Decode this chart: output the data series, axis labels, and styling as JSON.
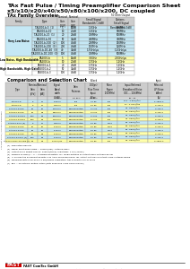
{
  "title_line1": "TAx Fast Pulse / Timing Preamplifier Comparison Sheet",
  "title_line2": "x5/x10/x20/x40/x50/x80/x100/x200, DC coupled",
  "section1_title": "TAx Family Overview",
  "section2_title": "Comparison and Selection Chart",
  "bg_color": "#ffffff",
  "header_color": "#cccccc",
  "row_color_blue": "#c5e8f5",
  "row_color_yellow": "#ffffaa",
  "row_color_white": "#ffffff",
  "row_color_gray": "#e8e8e8",
  "family_col_widths": [
    30,
    28,
    12,
    12,
    32,
    30
  ],
  "family_headers": [
    "Family",
    "Type",
    "Nominal\nGain\n[V/V]",
    "Nominal\nGain\n[dB]",
    "Small Signal\nBandwidth (-3dB)",
    "50 Ohm Output\nOptions:\nSmall Signal\nBandwidth (-3dB)"
  ],
  "family_groups": [
    {
      "name": "Very Low Noise",
      "color": "#c5e8f5",
      "rows": [
        [
          "TA1000-b-5  (1)",
          "5",
          "14dB",
          "1.3GHz",
          "900MHz"
        ],
        [
          "TA1000-b-10",
          "10",
          "20dB",
          "1.3GHz",
          "900MHz"
        ],
        [
          "TA1000-b-20  (1)",
          "20",
          "26dB",
          "700MHz",
          "500MHz"
        ],
        [
          "TA1000-b-50",
          "50",
          "34dB",
          "400MHz",
          "300MHz"
        ],
        [
          "TA1000-b-100  (2)",
          "100",
          "40dB",
          "200MHz",
          "150MHz"
        ],
        [
          "TA1000-b-200  (3)",
          "200",
          "46dB",
          "170MHz",
          "120MHz"
        ],
        [
          "TA1000-b-DC-40  (3)",
          "40",
          "32dB",
          "1.7GHz/μs",
          "1.1GHz/μs"
        ],
        [
          "TA1000-b-DC-100  (3)",
          "100",
          "40dB",
          "700MHz",
          "500MHz"
        ]
      ]
    },
    {
      "name": "Low Noise, High Bandwidth",
      "color": "#ffffaa",
      "rows": [
        [
          "TA2000-b",
          "5",
          "14dB",
          "3.5GHz",
          "2.5GHz/μs"
        ],
        [
          "TA2000-b",
          "10",
          "20dB",
          "1.7GHz",
          "1.2GHz"
        ]
      ]
    },
    {
      "name": "High Bandwidth, High Gain",
      "color": "#ffffff",
      "rows": [
        [
          "TA3000-b-1",
          "20",
          "26dB",
          "1.7GHz",
          "1.2GHz"
        ],
        [
          "TA3000-b-2",
          "50",
          "34dB",
          "1.7GHz",
          "1.2GHz"
        ],
        [
          "TA3000-b-3",
          "100",
          "40dB",
          "1.7GHz",
          "1.2GHz"
        ]
      ]
    }
  ],
  "comp_col_widths": [
    25,
    11,
    11,
    22,
    20,
    19,
    17,
    34,
    25
  ],
  "comp_headers": [
    "Type",
    "Nominal\nGain\n[V/V]",
    "Nominal\nGain\n[dB]",
    "Small\nSignal\nBand-\nwidth\n(-3dB)",
    "Gain\nFlatness",
    "Pulsed\n(100ps)\nRise Time\nInput\nPulse",
    "Noise\nFigure\n(100MHz)",
    "Input Referred\nBroadband Noise\n(DC ... 10.6MHz)",
    "Input\nReferred\nLP Noise\n(dBm)\n(5)"
  ],
  "comp_subheaders": [
    "",
    "",
    "",
    "40 ps s",
    "20 ps s",
    "50 ps s",
    "",
    "20...40",
    "(4)"
  ],
  "comp_rows": [
    {
      "color": "#c5e8f5",
      "data": [
        "TA1000-b",
        "5",
        "14",
        "1.3GHz",
        "Typ",
        "40 ps",
        "Typ",
        "1.17...1.5nV/√Hz",
        "2.75μV s"
      ]
    },
    {
      "color": "#ffffaa",
      "data": [
        "TA2000-b",
        "5",
        "14",
        "3.5GHz",
        "Typ",
        "60 ps",
        "Typ",
        "1.1...1.5nV/√Hz",
        "3.7μV s"
      ]
    },
    {
      "color": "#c5e8f5",
      "data": [
        "TA1000-b x20",
        "20",
        "26",
        "700MHz",
        "Compensated",
        "0.1 ns",
        "Typ",
        "41...56nV/√Hz",
        "3.7μV s"
      ]
    },
    {
      "color": "#ffffaa",
      "data": [
        "TA1000-b x50",
        "50",
        "34",
        "400MHz",
        "Compensated",
        "0.2 ns",
        "Typ",
        "41...56nV/√Hz",
        "3.7μV s"
      ]
    },
    {
      "color": "#c5e8f5",
      "data": [
        "TA1000-b x100",
        "100",
        "40",
        "200MHz",
        "Compensated",
        "0.4 ns",
        "Typ",
        "41...56nV/√Hz",
        "3.7μV s"
      ]
    },
    {
      "color": "#ffffaa",
      "data": [
        "TA1000-b x200",
        "200",
        "46",
        "170MHz",
        "Compensated",
        "0.7 ns",
        "Typ",
        "41...56nV/√Hz",
        "3.7μV s"
      ]
    },
    {
      "color": "#c5e8f5",
      "data": [
        "TA2000-b x5 (3)",
        "5",
        "14",
        "3.5GHz",
        "Compensated",
        "60 ps",
        "1100",
        "40...56nV/√Hz",
        "3.7μV s"
      ]
    },
    {
      "color": "#ffffaa",
      "data": [
        "TA2000-b x10",
        "10",
        "20",
        "1.7GHz",
        "Compensated",
        "80 ps",
        "1100",
        "40...56nV/√Hz",
        "3.7μV s"
      ]
    },
    {
      "color": "#c5e8f5",
      "data": [
        "TA3000-b x20",
        "20",
        "26",
        "1.7GHz",
        "Compensated",
        "80 ps",
        "1100",
        "40...56nV/√Hz",
        "3.7μV s"
      ]
    },
    {
      "color": "#ffffaa",
      "data": [
        "TA3000-b x50",
        "50",
        "34",
        "1.7GHz",
        "Compensated",
        "80 ps",
        "1100",
        "40...56nV/√Hz",
        "3.7μV s"
      ]
    },
    {
      "color": "#c5e8f5",
      "data": [
        "TA3000-b x100 (4)",
        "100",
        "40",
        "1.7GHz",
        "Compensated",
        "80 ps",
        "1100",
        "40...56nV/√Hz",
        "3.7μV s"
      ]
    },
    {
      "color": "#ffffaa",
      "data": [
        "TA1000-b-DC-40 new (4)",
        "40",
        "32",
        "1.7GHz/μs",
        "Compensated",
        "65 ps",
        "Typ",
        "41...56nV/√Hz",
        "3.75μV s"
      ]
    }
  ],
  "footnotes": [
    "(1)  Simulation Results",
    "(2)  Signal input drive range = 250mV(diff), \"internal Bias\"",
    "(3)  Output Pulse height approx. 3x6mV(typ.p), Input Bias: 1 ms (100ps)",
    "(4)  Defined as RMS(s = n = standard deviation, ref. range pictures of output noise voltages below",
    "(5)  In 10 minutes accumulated with 2 Hz ADFs sampling mean: ref. output pictures of output noise voltages below",
    "(6)  Measured with a 50*5x50s 3 ms/50MHz calibration, this is exactly 5% of noise",
    "(7)  BPL = Selectable limited option (with improved noise performance)"
  ],
  "footer_company": "FAST ComTec GmbH",
  "footer_address": "Grünwalder Weg 28a, 82041 Oberhaching, phone +49-(0)89-665-180-0, FAX +49-(0)89-665-180-40, http://www.fast-comtec.com     1 of 12",
  "sidebar_text": "TAx Fast Pulse / Timing Preamplifier"
}
